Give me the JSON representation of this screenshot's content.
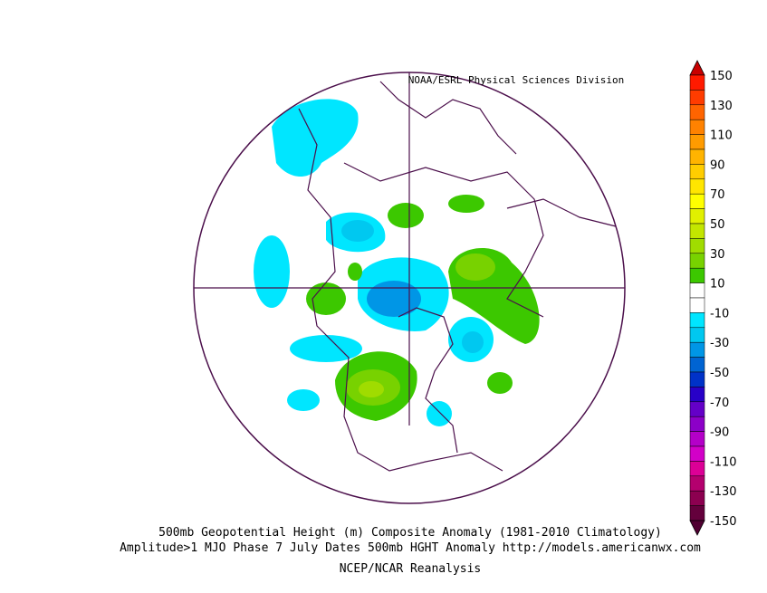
{
  "credit": "NOAA/ESRL Physical Sciences Division",
  "caption": [
    "500mb Geopotential Height (m) Composite Anomaly (1981-2010 Climatology)",
    "Amplitude>1 MJO Phase 7 July Dates 500mb HGHT Anomaly http://models.americanwx.com",
    "NCEP/NCAR Reanalysis"
  ],
  "colorbar": {
    "labels": [
      150,
      130,
      110,
      90,
      70,
      50,
      30,
      10,
      -10,
      -30,
      -50,
      -70,
      -90,
      -110,
      -130,
      -150
    ],
    "colors": [
      "#c80000",
      "#ff1a00",
      "#ff3c00",
      "#ff6400",
      "#ff8200",
      "#ff9b00",
      "#ffb400",
      "#ffcd00",
      "#ffe600",
      "#ffff00",
      "#e1f000",
      "#c3e600",
      "#a0dc00",
      "#78d200",
      "#3cc800",
      "#ffffff",
      "#ffffff",
      "#00e6ff",
      "#00c8f0",
      "#0096e6",
      "#0064d2",
      "#0032c8",
      "#2800c8",
      "#6400c8",
      "#8c00c8",
      "#b400c8",
      "#d200c8",
      "#dc0096",
      "#b4006e",
      "#8c0050",
      "#64003c",
      "#500032"
    ]
  }
}
